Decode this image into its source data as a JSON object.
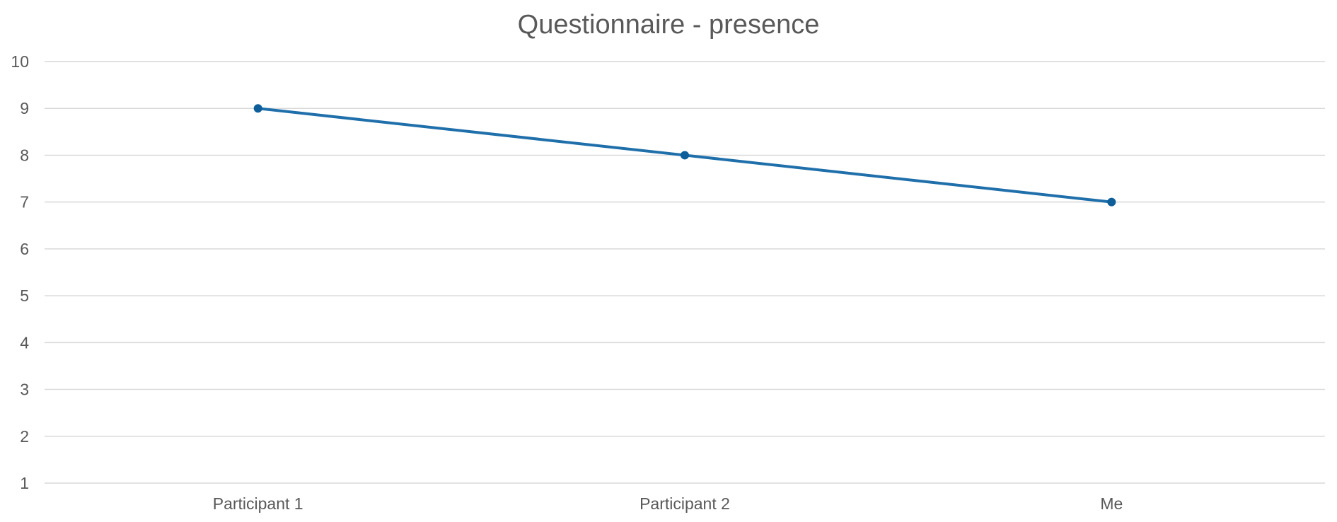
{
  "chart_data": {
    "type": "line",
    "title": "Questionnaire - presence",
    "xlabel": "",
    "ylabel": "",
    "categories": [
      "Participant 1",
      "Participant 2",
      "Me"
    ],
    "series": [
      {
        "values": [
          9,
          8,
          7
        ]
      }
    ],
    "ylim": [
      1,
      10
    ],
    "yticks": [
      1,
      2,
      3,
      4,
      5,
      6,
      7,
      8,
      9,
      10
    ],
    "grid": true,
    "legend": "none",
    "colors": {
      "series": "#1f6fab",
      "marker": "#0e5e99"
    }
  }
}
